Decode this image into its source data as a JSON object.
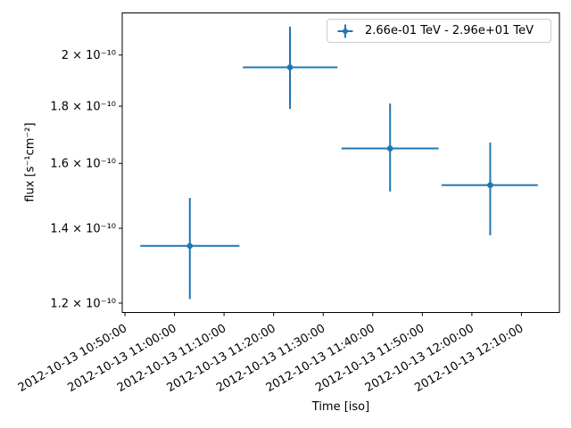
{
  "chart_data": {
    "type": "scatter",
    "subtype": "errorbar-light-curve",
    "title": "",
    "xlabel": "Time [iso]",
    "ylabel": "flux [s⁻¹cm⁻²]",
    "x_scale": "time",
    "y_scale": "log",
    "grid": false,
    "background_color": "#ffffff",
    "axes_color": "#000000",
    "x_origin_iso": "2012-10-13 10:50:00",
    "xlim_minutes": [
      -0.54,
      87.66
    ],
    "ylim": [
      1.177e-10,
      2.181e-10
    ],
    "x_ticks": [
      {
        "minutes": 0,
        "label": "2012-10-13 10:50:00"
      },
      {
        "minutes": 10,
        "label": "2012-10-13 11:00:00"
      },
      {
        "minutes": 20,
        "label": "2012-10-13 11:10:00"
      },
      {
        "minutes": 30,
        "label": "2012-10-13 11:20:00"
      },
      {
        "minutes": 40,
        "label": "2012-10-13 11:30:00"
      },
      {
        "minutes": 50,
        "label": "2012-10-13 11:40:00"
      },
      {
        "minutes": 60,
        "label": "2012-10-13 11:50:00"
      },
      {
        "minutes": 70,
        "label": "2012-10-13 12:00:00"
      },
      {
        "minutes": 80,
        "label": "2012-10-13 12:10:00"
      }
    ],
    "y_ticks": [
      {
        "value": 1.2e-10,
        "label": "1.2 × 10⁻¹⁰"
      },
      {
        "value": 1.4e-10,
        "label": "1.4 × 10⁻¹⁰"
      },
      {
        "value": 1.6e-10,
        "label": "1.6 × 10⁻¹⁰"
      },
      {
        "value": 1.8e-10,
        "label": "1.8 × 10⁻¹⁰"
      },
      {
        "value": 2e-10,
        "label": "2 × 10⁻¹⁰"
      }
    ],
    "legend": {
      "position": "upper right"
    },
    "series": [
      {
        "name": "2.66e-01 TeV - 2.96e+01 TeV",
        "color": "#1f77b4",
        "marker": "o",
        "points": [
          {
            "time_iso": "2012-10-13 11:03:00",
            "t_start_iso": "2012-10-13 10:53:00",
            "t_stop_iso": "2012-10-13 11:13:00",
            "t_min": 13.1,
            "t_lo_min": 3.1,
            "t_hi_min": 23.1,
            "flux": 1.35e-10,
            "flux_lo": 1.21e-10,
            "flux_hi": 1.49e-10
          },
          {
            "time_iso": "2012-10-13 11:23:30",
            "t_start_iso": "2012-10-13 11:14:00",
            "t_stop_iso": "2012-10-13 11:33:00",
            "t_min": 33.3,
            "t_lo_min": 23.8,
            "t_hi_min": 42.9,
            "flux": 1.95e-10,
            "flux_lo": 1.79e-10,
            "flux_hi": 2.12e-10
          },
          {
            "time_iso": "2012-10-13 11:43:30",
            "t_start_iso": "2012-10-13 11:34:00",
            "t_stop_iso": "2012-10-13 11:53:00",
            "t_min": 53.5,
            "t_lo_min": 43.7,
            "t_hi_min": 63.3,
            "flux": 1.65e-10,
            "flux_lo": 1.51e-10,
            "flux_hi": 1.81e-10
          },
          {
            "time_iso": "2012-10-13 12:03:45",
            "t_start_iso": "2012-10-13 11:54:00",
            "t_stop_iso": "2012-10-13 12:13:00",
            "t_min": 73.7,
            "t_lo_min": 63.9,
            "t_hi_min": 83.3,
            "flux": 1.53e-10,
            "flux_lo": 1.38e-10,
            "flux_hi": 1.67e-10
          }
        ]
      }
    ]
  }
}
